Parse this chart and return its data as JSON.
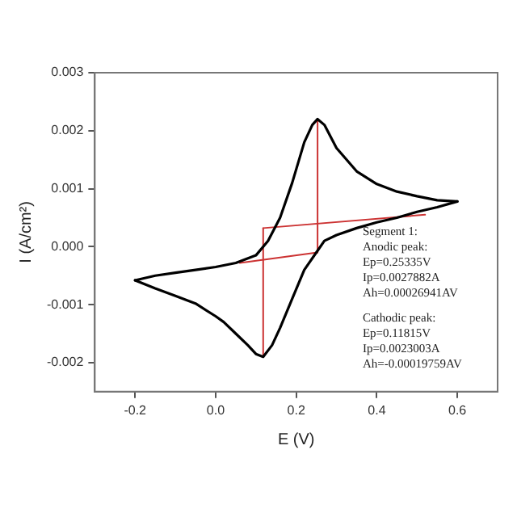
{
  "chart_data": {
    "type": "line",
    "xlabel": "E (V)",
    "ylabel": "I (A/cm²)",
    "xlim": [
      -0.3,
      0.7
    ],
    "xticks": [
      -0.2,
      {
        "value": 0,
        "label": "0.0"
      },
      0.2,
      0.4,
      0.6
    ],
    "ylim": [
      -0.0025,
      0.003
    ],
    "yticks": [
      -0.002,
      -0.001,
      {
        "value": 0,
        "label": "0.000"
      },
      0.001,
      0.002,
      0.003
    ],
    "grid": false,
    "legend": false,
    "marker": "none",
    "line_style": "solid",
    "series": [
      {
        "color": "#000000",
        "x": [
          -0.2,
          -0.15,
          -0.1,
          -0.05,
          0,
          0.05,
          0.1,
          0.13,
          0.16,
          0.19,
          0.22,
          0.24,
          0.253,
          0.27,
          0.3,
          0.35,
          0.4,
          0.45,
          0.5,
          0.55,
          0.6
        ],
        "values": [
          -0.00058,
          -0.0005,
          -0.00045,
          -0.0004,
          -0.00035,
          -0.00028,
          -0.00015,
          0.0001,
          0.0005,
          0.0011,
          0.0018,
          0.0021,
          0.0022,
          0.0021,
          0.0017,
          0.0013,
          0.00108,
          0.00095,
          0.00087,
          0.0008,
          0.00078
        ]
      },
      {
        "color": "#000000",
        "x": [
          0.6,
          0.55,
          0.5,
          0.45,
          0.4,
          0.35,
          0.3,
          0.27,
          0.25,
          0.22,
          0.19,
          0.16,
          0.14,
          0.118,
          0.1,
          0.08,
          0.05,
          0.02,
          0,
          -0.05,
          -0.1,
          -0.15,
          -0.2
        ],
        "values": [
          0.00078,
          0.00068,
          0.0006,
          0.0005,
          0.00042,
          0.00032,
          0.0002,
          0.0001,
          -0.0001,
          -0.0004,
          -0.0009,
          -0.0014,
          -0.0017,
          -0.0019,
          -0.00185,
          -0.0017,
          -0.0015,
          -0.0013,
          -0.0012,
          -0.00098,
          -0.00085,
          -0.00072,
          -0.00058
        ]
      },
      {
        "color": "#cc3333",
        "x": [
          0.06,
          0.253
        ],
        "values": [
          -0.00028,
          -0.0001
        ]
      },
      {
        "color": "#cc3333",
        "x": [
          0.253,
          0.253
        ],
        "values": [
          -0.0001,
          0.0022
        ]
      },
      {
        "color": "#cc3333",
        "x": [
          0.118,
          0.118
        ],
        "values": [
          -0.0019,
          0.00032
        ]
      },
      {
        "color": "#cc3333",
        "x": [
          0.118,
          0.52
        ],
        "values": [
          0.00032,
          0.00055
        ]
      }
    ],
    "annotations": [
      "Segment 1:\nAnodic peak:\nEp=0.25335V\nIp=0.0027882A\nAh=0.00026941AV",
      "Cathodic peak:\nEp=0.11815V\nIp=0.0023003A\nAh=-0.00019759AV"
    ]
  }
}
